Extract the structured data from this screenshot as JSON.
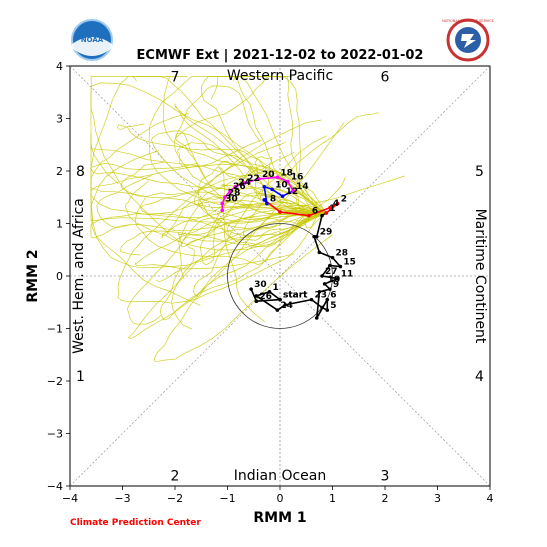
{
  "chart_data": {
    "type": "line",
    "title": "ECMWF Ext | 2021-12-02 to 2022-01-02",
    "xlabel": "RMM 1",
    "ylabel": "RMM 2",
    "xlim": [
      -4,
      4
    ],
    "ylim": [
      -4,
      4
    ],
    "ticks": [
      "−4",
      "−3",
      "−2",
      "−1",
      "0",
      "1",
      "2",
      "3",
      "4"
    ],
    "region_labels": {
      "top": "Western Pacific",
      "bottom": "Indian Ocean",
      "left": "West. Hem. and Africa",
      "right": "Maritime Continent"
    },
    "phases": [
      {
        "label": "1",
        "x": -3.8,
        "y": -1.9
      },
      {
        "label": "2",
        "x": -2.0,
        "y": -3.8
      },
      {
        "label": "3",
        "x": 2.0,
        "y": -3.8
      },
      {
        "label": "4",
        "x": 3.8,
        "y": -1.9
      },
      {
        "label": "5",
        "x": 3.8,
        "y": 2.0
      },
      {
        "label": "6",
        "x": 2.0,
        "y": 3.8
      },
      {
        "label": "7",
        "x": -2.0,
        "y": 3.8
      },
      {
        "label": "8",
        "x": -3.8,
        "y": 2.0
      }
    ],
    "observed": {
      "color": "#000000",
      "points": [
        {
          "label": "start",
          "x": 0.0,
          "y": -0.45
        },
        {
          "label": "1",
          "x": -0.2,
          "y": -0.3
        },
        {
          "label": "",
          "x": -0.45,
          "y": -0.38
        },
        {
          "label": "24",
          "x": -0.05,
          "y": -0.65
        },
        {
          "label": "",
          "x": 0.1,
          "y": -0.55
        },
        {
          "label": "23",
          "x": 0.6,
          "y": -0.45
        },
        {
          "label": "",
          "x": 0.8,
          "y": -0.6
        },
        {
          "label": "5",
          "x": 0.9,
          "y": -0.65
        },
        {
          "label": "6",
          "x": 0.9,
          "y": -0.45
        },
        {
          "label": "",
          "x": 0.7,
          "y": -0.8
        },
        {
          "label": "",
          "x": 0.75,
          "y": -0.3
        },
        {
          "label": "9",
          "x": 0.95,
          "y": -0.25
        },
        {
          "label": "10",
          "x": 0.85,
          "y": -0.15
        },
        {
          "label": "11",
          "x": 1.1,
          "y": -0.05
        },
        {
          "label": "27",
          "x": 0.8,
          "y": 0.0
        },
        {
          "label": "",
          "x": 0.95,
          "y": 0.2
        },
        {
          "label": "15",
          "x": 1.15,
          "y": 0.18
        },
        {
          "label": "28",
          "x": 1.0,
          "y": 0.35
        },
        {
          "label": "",
          "x": 0.75,
          "y": 0.45
        },
        {
          "label": "",
          "x": 0.65,
          "y": 0.75
        },
        {
          "label": "29",
          "x": 0.7,
          "y": 0.75
        },
        {
          "label": "",
          "x": 0.8,
          "y": 1.15
        },
        {
          "label": "1",
          "x": 0.88,
          "y": 1.2
        }
      ],
      "tail": [
        {
          "label": "30",
          "x": -0.55,
          "y": -0.25
        },
        {
          "label": "26",
          "x": -0.45,
          "y": -0.48
        },
        {
          "label": "start",
          "x": 0.0,
          "y": -0.45
        }
      ]
    },
    "forecast_segments": [
      {
        "color": "#ff0000",
        "points": [
          {
            "label": "",
            "x": 0.88,
            "y": 1.2
          },
          {
            "label": "2",
            "x": 1.1,
            "y": 1.38
          },
          {
            "label": "4",
            "x": 0.95,
            "y": 1.3
          },
          {
            "label": "6",
            "x": 0.55,
            "y": 1.15
          },
          {
            "label": "",
            "x": 0.0,
            "y": 1.22
          },
          {
            "label": "",
            "x": -0.3,
            "y": 1.45
          }
        ]
      },
      {
        "color": "#0000ff",
        "points": [
          {
            "label": "",
            "x": -0.3,
            "y": 1.45
          },
          {
            "label": "8",
            "x": -0.25,
            "y": 1.38
          },
          {
            "label": "",
            "x": -0.3,
            "y": 1.7
          },
          {
            "label": "10",
            "x": -0.15,
            "y": 1.65
          },
          {
            "label": "12",
            "x": 0.05,
            "y": 1.52
          },
          {
            "label": "14",
            "x": 0.25,
            "y": 1.62
          }
        ]
      },
      {
        "color": "#ff00ff",
        "points": [
          {
            "label": "",
            "x": 0.25,
            "y": 1.62
          },
          {
            "label": "16",
            "x": 0.15,
            "y": 1.8
          },
          {
            "label": "18",
            "x": -0.05,
            "y": 1.88
          },
          {
            "label": "20",
            "x": -0.4,
            "y": 1.85
          },
          {
            "label": "22",
            "x": -0.68,
            "y": 1.77
          },
          {
            "label": "24",
            "x": -0.85,
            "y": 1.7
          },
          {
            "label": "26",
            "x": -0.95,
            "y": 1.62
          },
          {
            "label": "28",
            "x": -1.05,
            "y": 1.5
          },
          {
            "label": "30",
            "x": -1.1,
            "y": 1.38
          },
          {
            "label": "",
            "x": -1.1,
            "y": 1.25
          }
        ]
      }
    ],
    "ensemble_color": "#c8c800",
    "unit_circle_radius": 1,
    "grid": true
  },
  "footer": {
    "credit": "Climate Prediction Center"
  },
  "logos": {
    "left_text": "NOAA",
    "right_text": "NATIONAL WEATHER SERVICE"
  }
}
